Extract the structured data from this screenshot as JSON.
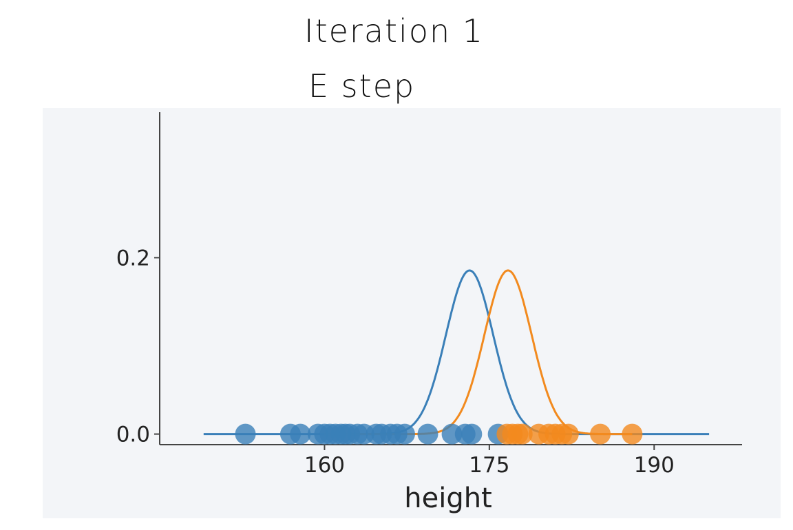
{
  "annotations": {
    "title": "Iteration 1",
    "subtitle": "E step"
  },
  "chart_data": {
    "type": "scatter",
    "xlabel": "height",
    "ylabel": "",
    "xlim": [
      145,
      198
    ],
    "ylim": [
      -0.012,
      0.365
    ],
    "xticks": [
      160,
      175,
      190
    ],
    "yticks": [
      0.0,
      0.2
    ],
    "xtick_labels": [
      "160",
      "175",
      "190"
    ],
    "ytick_labels": [
      "0.0",
      "0.2"
    ],
    "grid": false,
    "colors": {
      "blue": "#3a7fb8",
      "orange": "#f28a1e",
      "background": "#f3f5f8"
    },
    "series": [
      {
        "kind": "curve",
        "color": "#3a7fb8",
        "distribution": "normal",
        "mean": 173.2,
        "sd": 2.15,
        "x_range": [
          149,
          195
        ]
      },
      {
        "kind": "curve",
        "color": "#f28a1e",
        "distribution": "normal",
        "mean": 176.7,
        "sd": 2.15,
        "x_range": [
          160,
          188
        ]
      },
      {
        "kind": "points",
        "color": "#3a7fb8",
        "y": 0,
        "x": [
          152.8,
          156.9,
          157.8,
          159.4,
          160.0,
          160.5,
          161.0,
          161.5,
          161.9,
          162.3,
          163.0,
          163.6,
          164.7,
          165.2,
          166.0,
          166.6,
          167.3,
          169.4,
          171.6,
          172.8,
          173.4,
          175.8
        ]
      },
      {
        "kind": "points",
        "color": "#f28a1e",
        "y": 0,
        "x": [
          176.6,
          177.1,
          177.6,
          178.0,
          179.5,
          180.4,
          181.0,
          181.6,
          182.2,
          185.1,
          188.0
        ]
      }
    ]
  }
}
